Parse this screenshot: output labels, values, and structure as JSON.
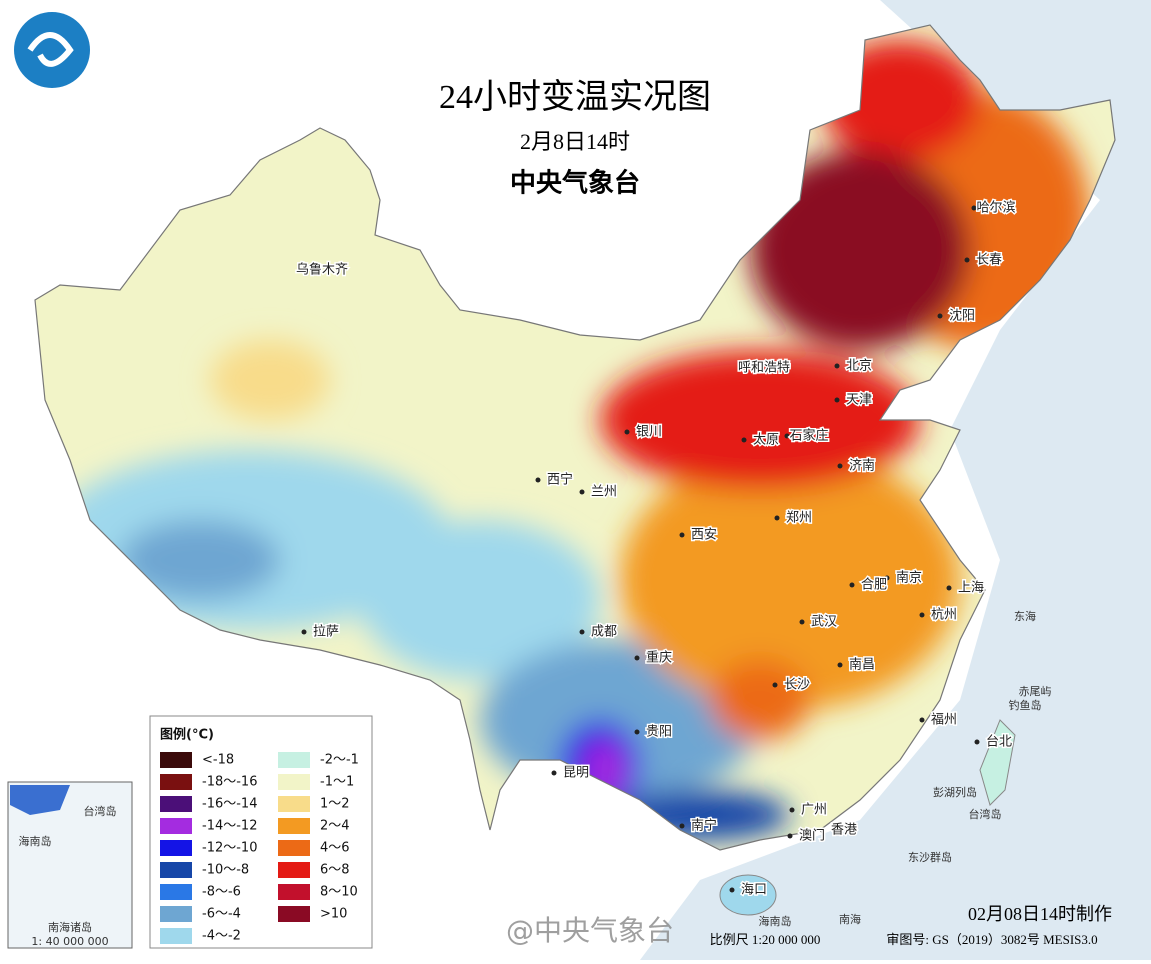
{
  "header": {
    "title": "24小时变温实况图",
    "subtitle": "2月8日14时",
    "agency": "中央气象台"
  },
  "legend": {
    "title": "图例(°C)",
    "items": [
      {
        "label": "<-18",
        "color": "#3b0a0a"
      },
      {
        "label": "-18～-16",
        "color": "#7a1010"
      },
      {
        "label": "-16～-14",
        "color": "#4b0f78"
      },
      {
        "label": "-14～-12",
        "color": "#a42ce0"
      },
      {
        "label": "-12～-10",
        "color": "#1414e6"
      },
      {
        "label": "-10～-8",
        "color": "#1646a8"
      },
      {
        "label": "-8～-6",
        "color": "#2a78e6"
      },
      {
        "label": "-6～-4",
        "color": "#6ea6d2"
      },
      {
        "label": "-4～-2",
        "color": "#9fd8ec"
      },
      {
        "label": "-2～-1",
        "color": "#c6f0e2"
      },
      {
        "label": "-1～1",
        "color": "#f2f4c8"
      },
      {
        "label": "1～2",
        "color": "#f8dc8a"
      },
      {
        "label": "2～4",
        "color": "#f39a22"
      },
      {
        "label": "4～6",
        "color": "#ec6a16"
      },
      {
        "label": "6～8",
        "color": "#e41a14"
      },
      {
        "label": "8～10",
        "color": "#c2102c"
      },
      {
        "label": ">10",
        "color": "#8a0a24"
      }
    ]
  },
  "cities": [
    "乌鲁木齐",
    "西宁",
    "兰州",
    "银川",
    "呼和浩特",
    "北京",
    "天津",
    "石家庄",
    "太原",
    "济南",
    "郑州",
    "西安",
    "成都",
    "重庆",
    "贵阳",
    "昆明",
    "南宁",
    "广州",
    "香港",
    "澳门",
    "海口",
    "长沙",
    "武汉",
    "南昌",
    "福州",
    "台北",
    "杭州",
    "南京",
    "合肥",
    "上海",
    "沈阳",
    "长春",
    "哈尔滨",
    "拉萨"
  ],
  "places": [
    "东海",
    "赤尾屿",
    "钓鱼岛",
    "彭湖列岛",
    "台湾岛",
    "东沙群岛",
    "海南岛",
    "南海"
  ],
  "inset": {
    "labels": [
      "台湾岛",
      "海南岛",
      "南海诸岛"
    ],
    "scale": "1: 40 000 000"
  },
  "footer": {
    "made": "02月08日14时制作",
    "scale": "比例尺 1:20 000 000",
    "approval": "审图号: GS（2019）3082号 MESIS3.0",
    "watermark": "@中央气象台"
  }
}
